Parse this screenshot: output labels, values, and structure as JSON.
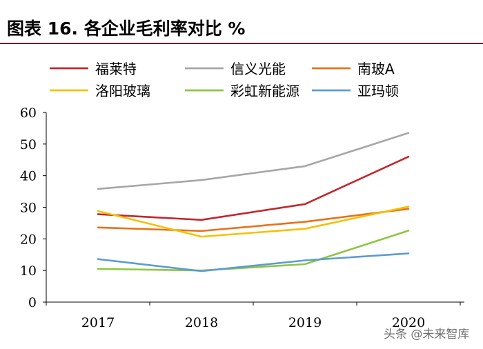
{
  "header": {
    "title": "图表 16. 各企业毛利率对比  %"
  },
  "chart_data": {
    "type": "line",
    "title": "图表 16. 各企业毛利率对比  %",
    "xlabel": "",
    "ylabel": "%",
    "x": [
      "2017",
      "2018",
      "2019",
      "2020"
    ],
    "ylim": [
      0,
      60
    ],
    "yticks": [
      0,
      10,
      20,
      30,
      40,
      50,
      60
    ],
    "grid": false,
    "legend_position": "top",
    "series": [
      {
        "name": "福莱特",
        "color": "#c0272d",
        "values": [
          27.8,
          26.0,
          31.0,
          46.0
        ]
      },
      {
        "name": "信义光能",
        "color": "#a6a6a6",
        "values": [
          35.8,
          38.6,
          43.0,
          53.5
        ]
      },
      {
        "name": "南玻A",
        "color": "#e8701a",
        "values": [
          23.6,
          22.5,
          25.4,
          29.5
        ]
      },
      {
        "name": "洛阳玻璃",
        "color": "#f5c000",
        "values": [
          28.8,
          20.7,
          23.2,
          30.2
        ]
      },
      {
        "name": "彩虹新能源",
        "color": "#8cc63f",
        "values": [
          10.5,
          10.0,
          12.0,
          22.6
        ]
      },
      {
        "name": "亚玛顿",
        "color": "#5b9bd5",
        "values": [
          13.6,
          9.8,
          13.2,
          15.4
        ]
      }
    ]
  },
  "watermark": {
    "text": "头条 @未来智库"
  }
}
